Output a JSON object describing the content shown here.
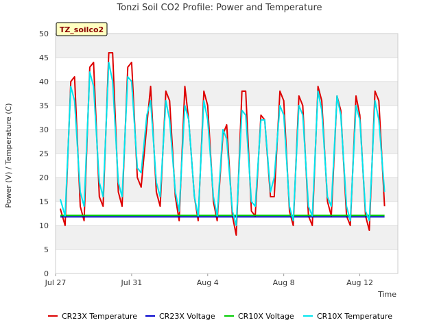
{
  "chart_data": {
    "type": "line",
    "title": "Tonzi Soil CO2 Profile: Power and Temperature",
    "xlabel": "Time",
    "ylabel": "Power (V) / Temperature (C)",
    "tag_label": "TZ_soilco2",
    "ylim": [
      0,
      50
    ],
    "yticks": [
      0,
      5,
      10,
      15,
      20,
      25,
      30,
      35,
      40,
      45,
      50
    ],
    "xlim": [
      0,
      18
    ],
    "xticks": [
      {
        "value": 0,
        "label": "Jul 27"
      },
      {
        "value": 4,
        "label": "Jul 31"
      },
      {
        "value": 8,
        "label": "Aug 4"
      },
      {
        "value": 12,
        "label": "Aug 8"
      },
      {
        "value": 16,
        "label": "Aug 12"
      }
    ],
    "grid": true,
    "legend_position": "bottom",
    "series": [
      {
        "name": "CR23X Temperature",
        "color": "#dd0000",
        "x": [
          0.25,
          0.5,
          0.8,
          1.0,
          1.3,
          1.5,
          1.8,
          2.0,
          2.3,
          2.5,
          2.8,
          3.0,
          3.3,
          3.5,
          3.8,
          4.0,
          4.3,
          4.5,
          4.8,
          5.0,
          5.3,
          5.5,
          5.8,
          6.0,
          6.3,
          6.5,
          6.8,
          7.0,
          7.3,
          7.5,
          7.8,
          8.0,
          8.3,
          8.5,
          8.8,
          9.0,
          9.3,
          9.5,
          9.8,
          10.0,
          10.3,
          10.5,
          10.8,
          11.0,
          11.3,
          11.5,
          11.8,
          12.0,
          12.3,
          12.5,
          12.8,
          13.0,
          13.3,
          13.5,
          13.8,
          14.0,
          14.3,
          14.5,
          14.8,
          15.0,
          15.3,
          15.5,
          15.8,
          16.0,
          16.3,
          16.5,
          16.8,
          17.0,
          17.3
        ],
        "values": [
          13.5,
          10,
          40,
          41,
          14,
          11,
          43,
          44,
          16,
          14,
          46,
          46,
          17,
          14,
          43,
          44,
          20,
          18,
          31,
          39,
          17,
          14,
          38,
          36,
          16,
          11,
          39,
          32,
          16,
          11,
          38,
          35,
          15,
          11,
          29,
          31,
          12,
          8,
          38,
          38,
          13,
          12,
          33,
          32,
          16,
          16,
          38,
          36,
          13,
          10,
          37,
          35,
          12,
          10,
          39,
          36,
          15,
          12,
          37,
          34,
          12,
          10,
          37,
          33,
          12,
          9,
          38,
          36,
          14
        ]
      },
      {
        "name": "CR23X Voltage",
        "color": "#0000cc",
        "x": [
          0.25,
          17.3
        ],
        "values": [
          11.8,
          11.8
        ]
      },
      {
        "name": "CR10X Voltage",
        "color": "#00cc00",
        "x": [
          0.25,
          17.3
        ],
        "values": [
          12.1,
          12.1
        ]
      },
      {
        "name": "CR10X Temperature",
        "color": "#00e5ee",
        "x": [
          0.25,
          0.5,
          0.8,
          1.0,
          1.3,
          1.5,
          1.8,
          2.0,
          2.3,
          2.5,
          2.8,
          3.0,
          3.3,
          3.5,
          3.8,
          4.0,
          4.3,
          4.5,
          4.8,
          5.0,
          5.3,
          5.5,
          5.8,
          6.0,
          6.3,
          6.5,
          6.8,
          7.0,
          7.3,
          7.5,
          7.8,
          8.0,
          8.3,
          8.5,
          8.8,
          9.0,
          9.3,
          9.5,
          9.8,
          10.0,
          10.3,
          10.5,
          10.8,
          11.0,
          11.3,
          11.5,
          11.8,
          12.0,
          12.3,
          12.5,
          12.8,
          13.0,
          13.3,
          13.5,
          13.8,
          14.0,
          14.3,
          14.5,
          14.8,
          15.0,
          15.3,
          15.5,
          15.8,
          16.0,
          16.3,
          16.5,
          16.8,
          17.0,
          17.3
        ],
        "values": [
          15.5,
          12,
          39,
          36,
          17,
          14,
          42,
          39,
          19,
          16,
          44,
          40,
          19,
          16,
          41,
          40,
          22,
          21,
          33,
          36,
          19,
          16,
          36,
          32,
          17,
          13,
          35,
          32,
          16,
          12,
          36,
          32,
          16,
          12,
          30,
          28,
          13,
          10,
          34,
          33,
          15,
          14,
          32,
          32,
          17,
          20,
          35,
          33,
          14,
          11,
          35,
          33,
          14,
          12,
          38,
          34,
          16,
          14,
          37,
          33,
          14,
          11,
          35,
          32,
          13,
          11,
          36,
          32,
          17
        ]
      }
    ]
  }
}
